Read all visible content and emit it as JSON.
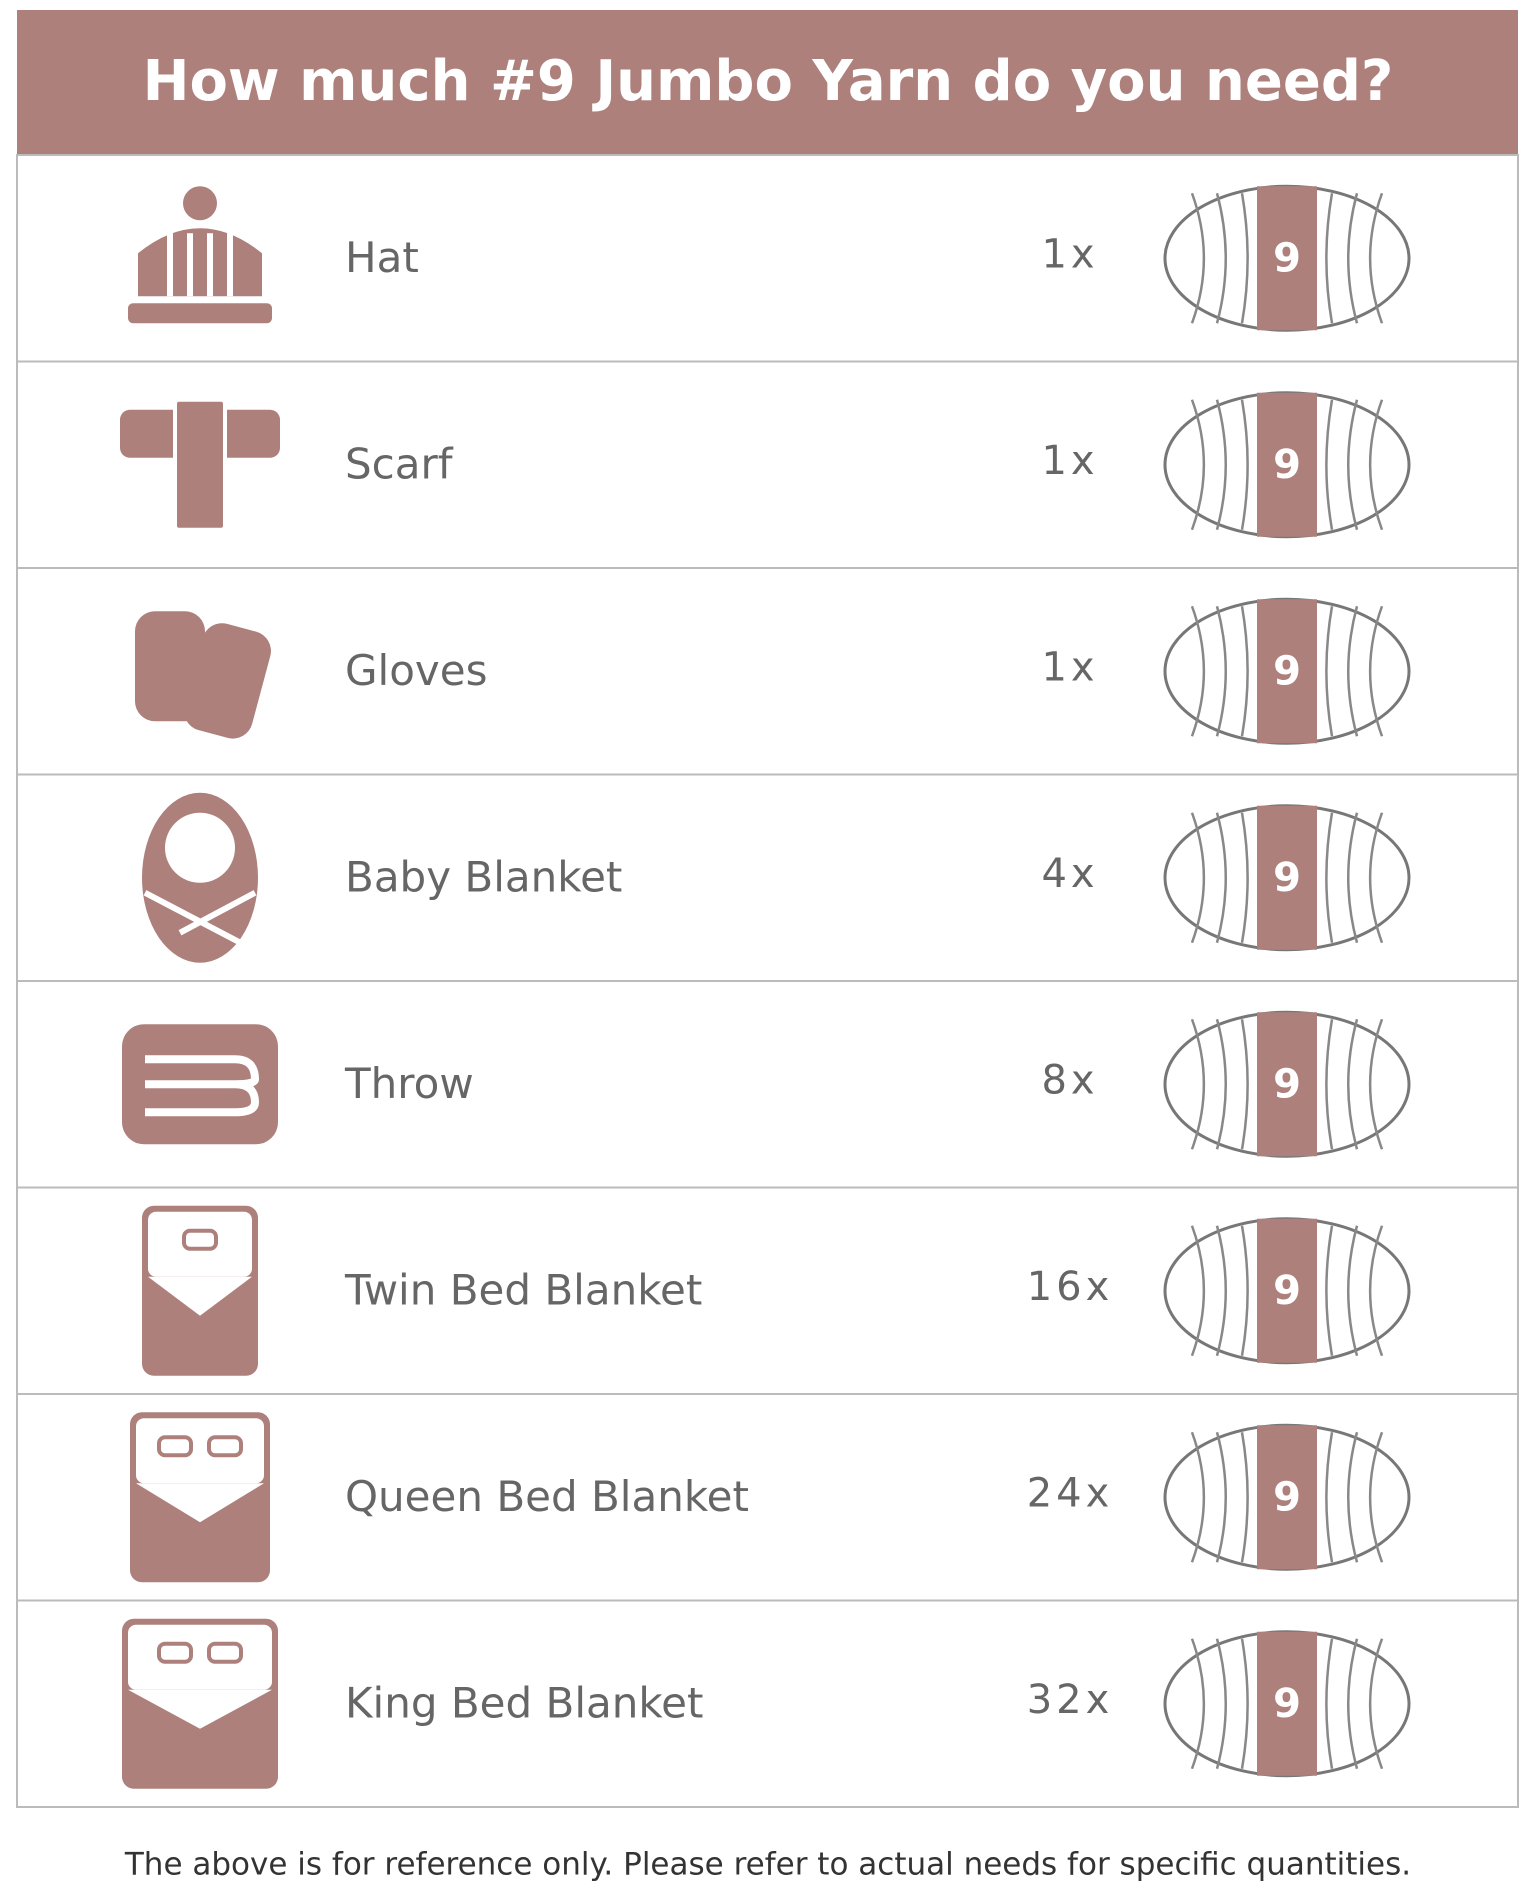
{
  "header": {
    "title": "How much #9 Jumbo Yarn do you need?"
  },
  "yarn_label": "9",
  "rows": [
    {
      "label": "Hat",
      "quantity": "1x"
    },
    {
      "label": "Scarf",
      "quantity": "1x"
    },
    {
      "label": "Gloves",
      "quantity": "1x"
    },
    {
      "label": "Baby Blanket",
      "quantity": "4x"
    },
    {
      "label": "Throw",
      "quantity": "8x"
    },
    {
      "label": "Twin Bed Blanket",
      "quantity": "16x"
    },
    {
      "label": "Queen Bed Blanket",
      "quantity": "24x"
    },
    {
      "label": "King Bed Blanket",
      "quantity": "32x"
    }
  ],
  "footer": "The above is for reference only. Please refer to actual needs for specific quantities."
}
